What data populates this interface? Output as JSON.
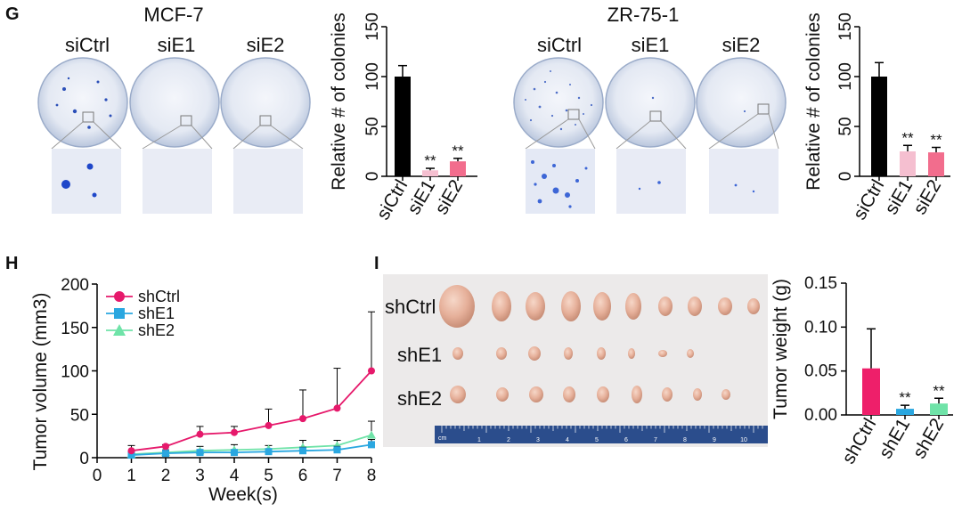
{
  "panels": {
    "G": {
      "letter": "G",
      "lines": [
        {
          "name": "MCF-7",
          "conditions": [
            "siCtrl",
            "siE1",
            "siE2"
          ],
          "chart_data": {
            "type": "bar",
            "categories": [
              "siCtrl",
              "siE1",
              "siE2"
            ],
            "values": [
              100,
              6,
              15
            ],
            "errors": [
              11,
              2,
              3
            ],
            "significance": [
              "",
              "**",
              "**"
            ],
            "ylabel": "Relative # of colonies",
            "ylim": [
              0,
              150
            ],
            "yticks": [
              "0",
              "50",
              "100",
              "150"
            ],
            "colors": [
              "#000000",
              "#f5bfd0",
              "#f26d8d"
            ]
          }
        },
        {
          "name": "ZR-75-1",
          "conditions": [
            "siCtrl",
            "siE1",
            "siE2"
          ],
          "chart_data": {
            "type": "bar",
            "categories": [
              "siCtrl",
              "siE1",
              "siE2"
            ],
            "values": [
              100,
              25,
              24
            ],
            "errors": [
              14,
              6,
              5
            ],
            "significance": [
              "",
              "**",
              "**"
            ],
            "ylabel": "Relative # of colonies",
            "ylim": [
              0,
              150
            ],
            "yticks": [
              "0",
              "50",
              "100",
              "150"
            ],
            "colors": [
              "#000000",
              "#f5bfd0",
              "#f26d8d"
            ]
          }
        }
      ]
    },
    "H": {
      "letter": "H",
      "chart_data": {
        "type": "line",
        "xlabel": "Week(s)",
        "ylabel": "Tumor volume (mm3)",
        "xlim": [
          0,
          8
        ],
        "ylim": [
          0,
          200
        ],
        "xticks": [
          "0",
          "1",
          "2",
          "3",
          "4",
          "5",
          "6",
          "7",
          "8"
        ],
        "yticks": [
          "0",
          "50",
          "100",
          "150",
          "200"
        ],
        "x": [
          1,
          2,
          3,
          4,
          5,
          6,
          7,
          8
        ],
        "series": [
          {
            "name": "shCtrl",
            "marker": "circle",
            "color": "#e6196b",
            "values": [
              8,
              13,
              27,
              29,
              37,
              45,
              57,
              100
            ],
            "errors": [
              6,
              2,
              9,
              7,
              19,
              33,
              46,
              68
            ]
          },
          {
            "name": "shE1",
            "marker": "square",
            "color": "#2aa7e0",
            "values": [
              3,
              5,
              6,
              6,
              7,
              8,
              9,
              15
            ],
            "errors": [
              2,
              3,
              3,
              3,
              3,
              4,
              4,
              6
            ]
          },
          {
            "name": "shE2",
            "marker": "triangle",
            "color": "#6fe3a8",
            "values": [
              4,
              6,
              8,
              9,
              10,
              12,
              14,
              26
            ],
            "errors": [
              3,
              3,
              5,
              6,
              4,
              8,
              6,
              16
            ]
          }
        ]
      }
    },
    "I": {
      "letter": "I",
      "photo_rows": [
        "shCtrl",
        "shE1",
        "shE2"
      ],
      "ruler_label": "cm",
      "ruler_numbers": [
        "1",
        "2",
        "3",
        "4",
        "5",
        "6",
        "7",
        "8",
        "9",
        "10"
      ],
      "chart_data": {
        "type": "bar",
        "categories": [
          "shCtrl",
          "shE1",
          "shE2"
        ],
        "values": [
          0.053,
          0.007,
          0.013
        ],
        "errors": [
          0.045,
          0.004,
          0.006
        ],
        "significance": [
          "",
          "**",
          "**"
        ],
        "ylabel": "Tumor weight (g)",
        "ylim": [
          0,
          0.15
        ],
        "yticks": [
          "0.00",
          "0.05",
          "0.10",
          "0.15"
        ],
        "colors": [
          "#ee1f6a",
          "#2aa7e0",
          "#6fe3a8"
        ]
      }
    }
  }
}
